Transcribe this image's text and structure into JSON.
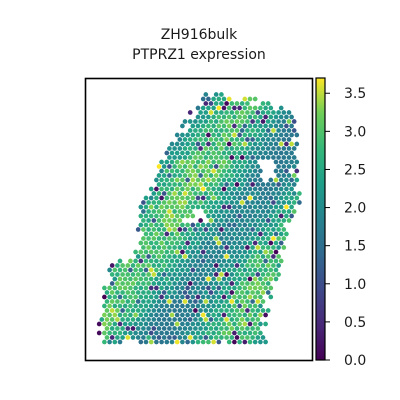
{
  "chart_data": {
    "type": "heatmap",
    "title_lines": [
      "ZH916bulk",
      "PTPRZ1 expression"
    ],
    "colorbar": {
      "colormap": "viridis",
      "range": [
        0.0,
        3.7
      ],
      "ticks": [
        0.0,
        0.5,
        1.0,
        1.5,
        2.0,
        2.5,
        3.0,
        3.5
      ],
      "tick_labels": [
        "0.0",
        "0.5",
        "1.0",
        "1.5",
        "2.0",
        "2.5",
        "3.0",
        "3.5"
      ]
    },
    "typical_expression_range": [
      1.5,
      3.3
    ],
    "axes": {
      "xticks": [],
      "yticks": [],
      "frame": true
    },
    "colors": {
      "low": "#440154",
      "mid": "#21918c",
      "high": "#fde725"
    }
  }
}
